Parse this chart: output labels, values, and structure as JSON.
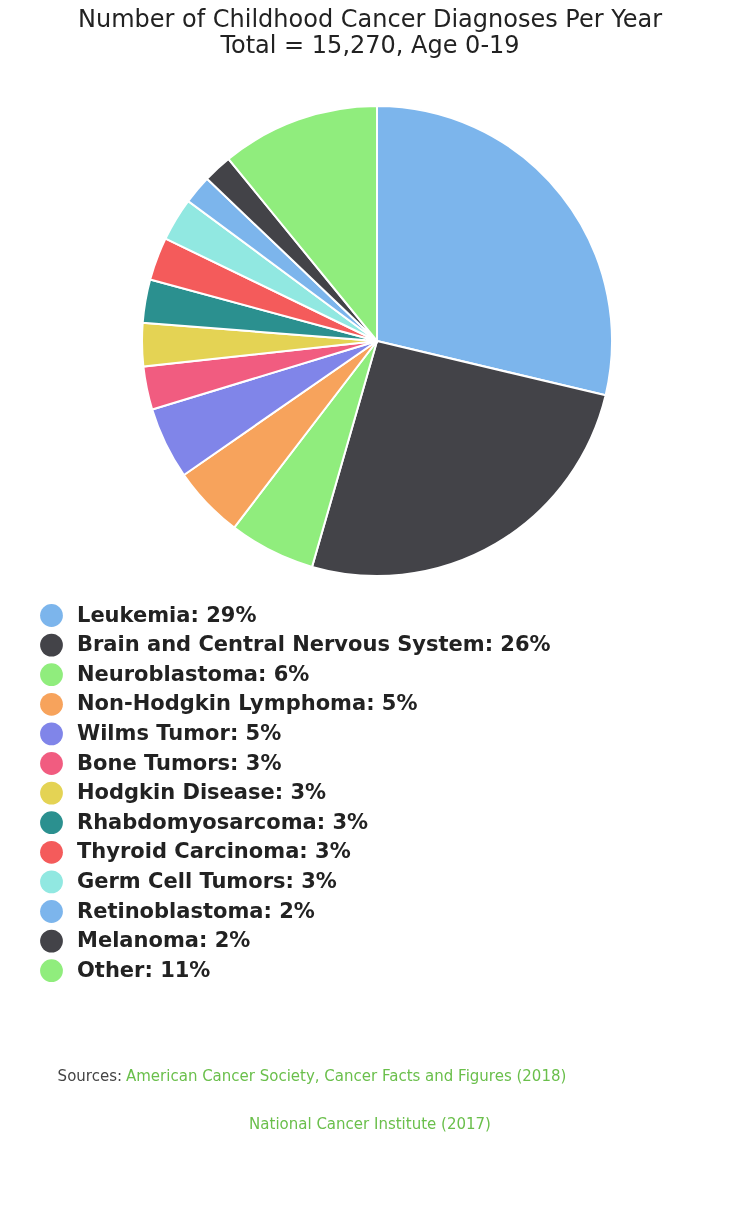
{
  "chart_data": {
    "type": "pie",
    "title": "Number of Childhood Cancer Diagnoses Per Year",
    "subtitle": "Total = 15,270, Age 0-19",
    "categories": [
      "Leukemia: 29%",
      "Brain and Central Nervous System: 26%",
      "Neuroblastoma: 6%",
      "Non-Hodgkin Lymphoma: 5%",
      "Wilms Tumor: 5%",
      "Bone Tumors: 3%",
      "Hodgkin Disease: 3%",
      "Rhabdomyosarcoma: 3%",
      "Thyroid Carcinoma: 3%",
      "Germ Cell Tumors: 3%",
      "Retinoblastoma: 2%",
      "Melanoma: 2%",
      "Other: 11%"
    ],
    "values": [
      29,
      26,
      6,
      5,
      5,
      3,
      3,
      3,
      3,
      3,
      2,
      2,
      11
    ],
    "colors": [
      "#7cb5ec",
      "#434348",
      "#90ed7d",
      "#f7a35c",
      "#8085e9",
      "#f15c80",
      "#e4d354",
      "#2b908f",
      "#f45b5b",
      "#91e8e1",
      "#7cb5ec",
      "#434348",
      "#90ed7d"
    ],
    "legend": "bottom",
    "annotations": [
      "Sources:",
      "American Cancer Society, Cancer Facts and Figures (2018)",
      "National Cancer Institute (2017)"
    ]
  }
}
